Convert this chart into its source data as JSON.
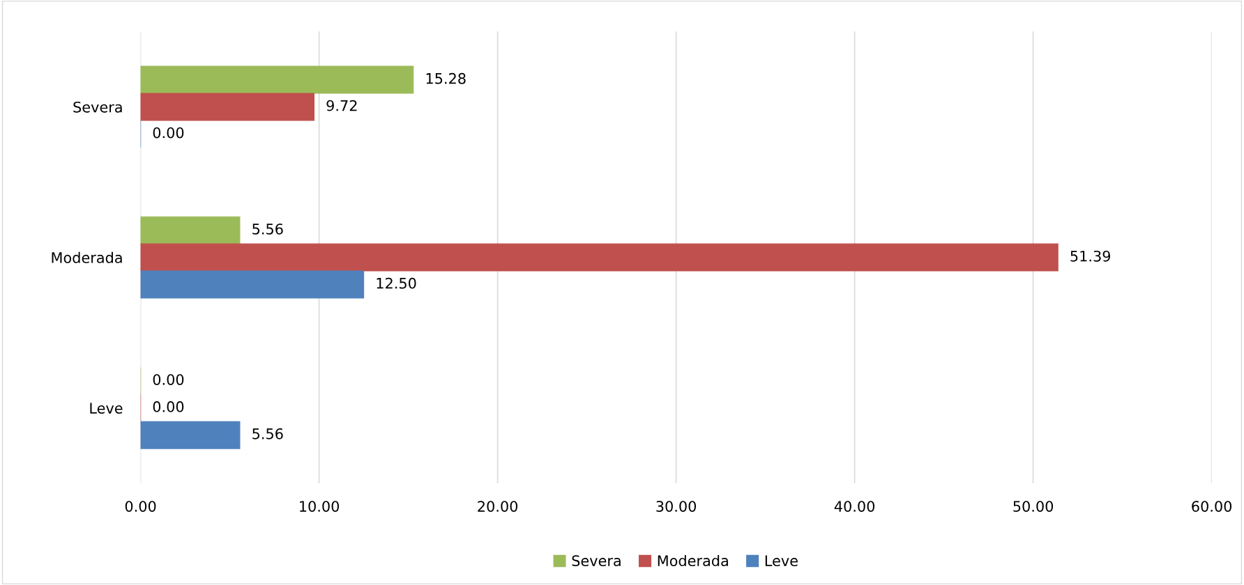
{
  "chart_data": {
    "type": "bar",
    "orientation": "horizontal",
    "categories": [
      "Severa",
      "Moderada",
      "Leve"
    ],
    "series": [
      {
        "name": "Severa",
        "color": "#9bbb59",
        "values": [
          15.28,
          5.56,
          0.0
        ],
        "value_labels": [
          "15.28",
          "5.56",
          "0.00"
        ]
      },
      {
        "name": "Moderada",
        "color": "#c0504d",
        "values": [
          9.72,
          51.39,
          0.0
        ],
        "value_labels": [
          "9.72",
          "51.39",
          "0.00"
        ]
      },
      {
        "name": "Leve",
        "color": "#4f81bd",
        "values": [
          0.0,
          12.5,
          5.56
        ],
        "value_labels": [
          "0.00",
          "12.50",
          "5.56"
        ]
      }
    ],
    "xlim": [
      0,
      60
    ],
    "xticks": [
      {
        "value": 0,
        "label": "0.00"
      },
      {
        "value": 10,
        "label": "10.00"
      },
      {
        "value": 20,
        "label": "20.00"
      },
      {
        "value": 30,
        "label": "30.00"
      },
      {
        "value": 40,
        "label": "40.00"
      },
      {
        "value": 50,
        "label": "50.00"
      },
      {
        "value": 60,
        "label": "60.00"
      }
    ],
    "grid": "x",
    "legend": "bottom"
  }
}
